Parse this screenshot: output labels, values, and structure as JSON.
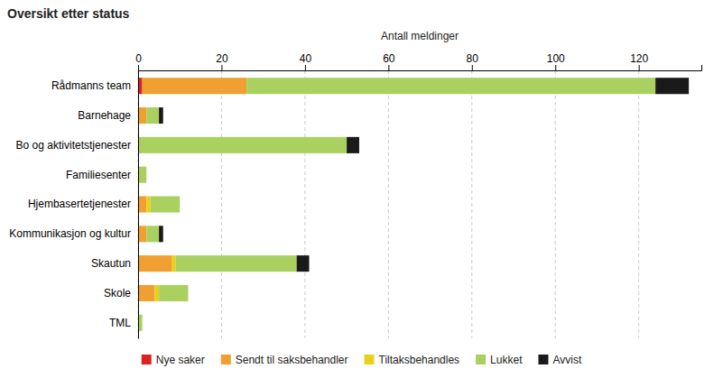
{
  "chart_data": {
    "type": "bar",
    "orientation": "horizontal",
    "stacked": true,
    "title": "Oversikt etter status",
    "xlabel": "Antall meldinger",
    "categories": [
      "Rådmanns team",
      "Barnehage",
      "Bo og aktivitetstjenester",
      "Familiesenter",
      "Hjembasertetjenester",
      "Kommunikasjon og kultur",
      "Skautun",
      "Skole",
      "TML"
    ],
    "series": [
      {
        "name": "Nye saker",
        "color": "#dd2222",
        "values": [
          1,
          0,
          0,
          0,
          0,
          0,
          0,
          0,
          0
        ]
      },
      {
        "name": "Sendt til saksbehandler",
        "color": "#f0a030",
        "values": [
          25,
          2,
          0,
          0,
          2,
          2,
          8,
          4,
          0
        ]
      },
      {
        "name": "Tiltaksbehandles",
        "color": "#e8d020",
        "values": [
          0,
          0,
          0,
          0,
          1,
          0,
          1,
          1,
          0
        ]
      },
      {
        "name": "Lukket",
        "color": "#aad060",
        "values": [
          98,
          3,
          50,
          2,
          7,
          3,
          29,
          7,
          1
        ]
      },
      {
        "name": "Avvist",
        "color": "#1a1a1a",
        "values": [
          8,
          1,
          3,
          0,
          0,
          1,
          3,
          0,
          0
        ]
      }
    ],
    "xlim": [
      0,
      135
    ],
    "xticks": [
      0,
      20,
      40,
      60,
      80,
      100,
      120
    ],
    "grid": true,
    "legend": "bottom"
  }
}
